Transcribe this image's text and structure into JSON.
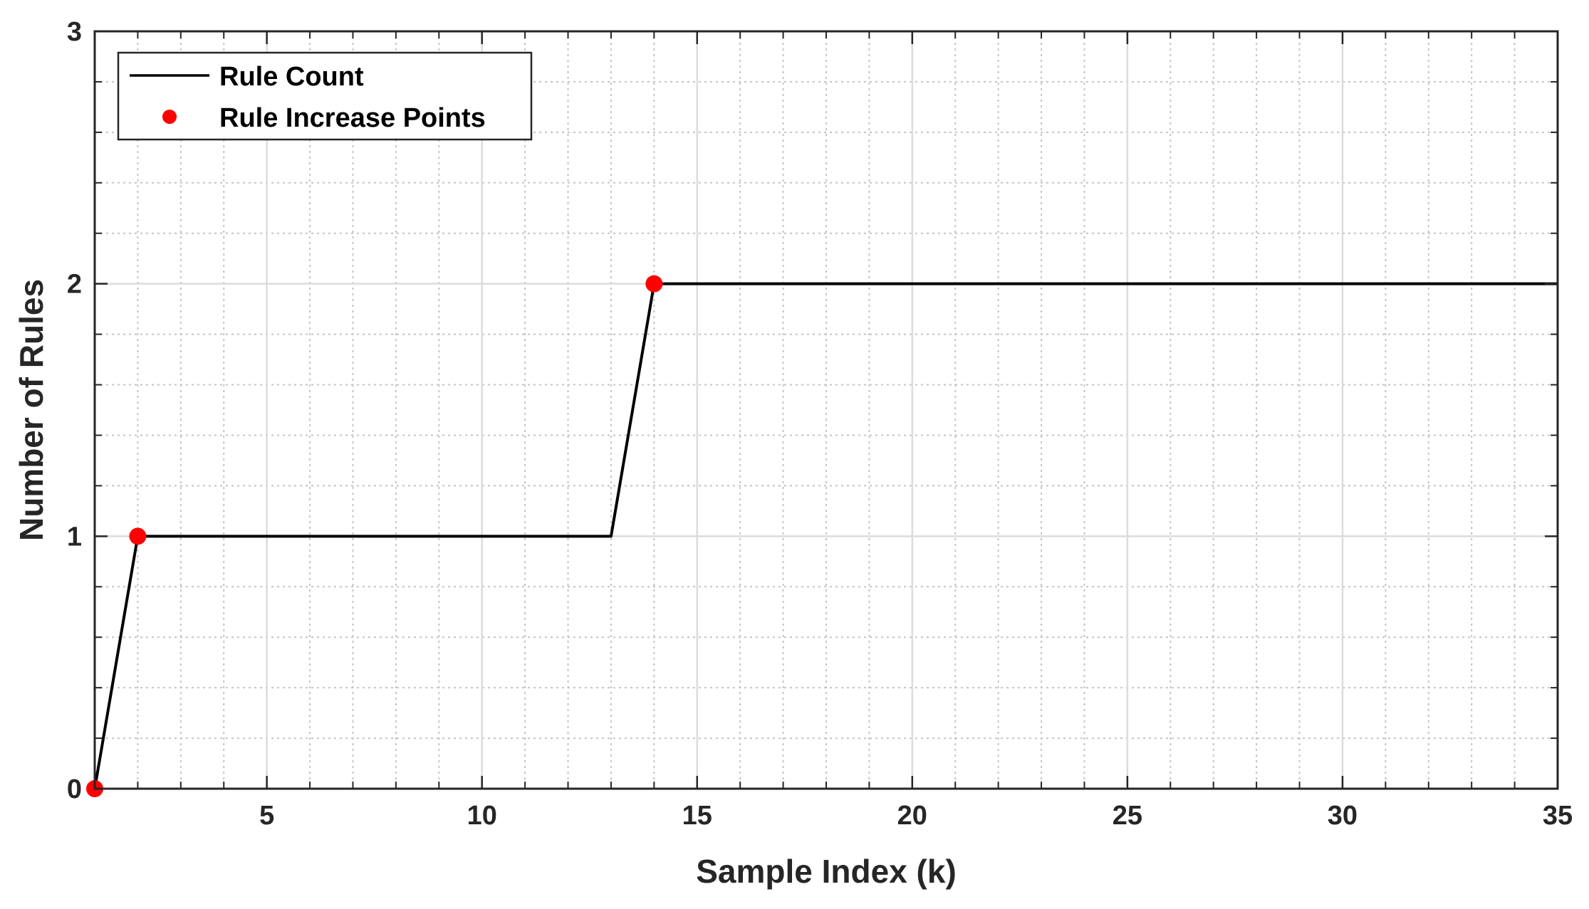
{
  "chart_data": {
    "type": "line",
    "title": "",
    "xlabel": "Sample Index (k)",
    "ylabel": "Number of Rules",
    "xlim": [
      1,
      35
    ],
    "ylim": [
      0,
      3
    ],
    "x_ticks": [
      5,
      10,
      15,
      20,
      25,
      30,
      35
    ],
    "y_ticks": [
      0,
      1,
      2,
      3
    ],
    "x_minor_step": 1,
    "y_minor_step": 0.2,
    "grid": true,
    "legend_position": "top-left",
    "series": [
      {
        "name": "Rule Count",
        "style": "line",
        "color": "#000000",
        "x": [
          1,
          2,
          3,
          4,
          5,
          6,
          7,
          8,
          9,
          10,
          11,
          12,
          13,
          14,
          15,
          16,
          17,
          18,
          19,
          20,
          21,
          22,
          23,
          24,
          25,
          26,
          27,
          28,
          29,
          30,
          31,
          32,
          33,
          34,
          35
        ],
        "y": [
          0,
          1,
          1,
          1,
          1,
          1,
          1,
          1,
          1,
          1,
          1,
          1,
          1,
          2,
          2,
          2,
          2,
          2,
          2,
          2,
          2,
          2,
          2,
          2,
          2,
          2,
          2,
          2,
          2,
          2,
          2,
          2,
          2,
          2,
          2
        ]
      },
      {
        "name": "Rule Increase Points",
        "style": "markers",
        "color": "#ff0000",
        "x": [
          1,
          2,
          14
        ],
        "y": [
          0,
          1,
          2
        ]
      }
    ]
  }
}
